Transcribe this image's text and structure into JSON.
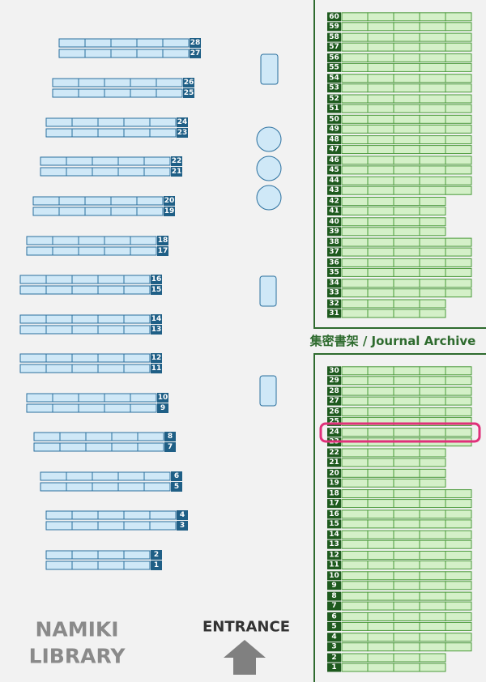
{
  "left_shelves": [
    "1",
    "2",
    "3",
    "4",
    "5",
    "6",
    "7",
    "8",
    "9",
    "10",
    "11",
    "12",
    "13",
    "14",
    "15",
    "16",
    "17",
    "18",
    "19",
    "20",
    "21",
    "22",
    "23",
    "24",
    "25",
    "26",
    "27",
    "28"
  ],
  "archive_shelves": [
    "1",
    "2",
    "3",
    "4",
    "5",
    "6",
    "7",
    "8",
    "9",
    "10",
    "11",
    "12",
    "13",
    "14",
    "15",
    "16",
    "17",
    "18",
    "19",
    "20",
    "21",
    "22",
    "23",
    "24",
    "25",
    "26",
    "27",
    "28",
    "29",
    "30",
    "31",
    "32",
    "33",
    "34",
    "35",
    "36",
    "37",
    "38",
    "39",
    "40",
    "41",
    "42",
    "43",
    "44",
    "45",
    "46",
    "47",
    "48",
    "49",
    "50",
    "51",
    "52",
    "53",
    "54",
    "55",
    "56",
    "57",
    "58",
    "59",
    "60"
  ],
  "archive_label": "集密書架 / Journal Archive",
  "library_name": [
    "NAMIKI",
    "LIBRARY"
  ],
  "entrance": "ENTRANCE"
}
